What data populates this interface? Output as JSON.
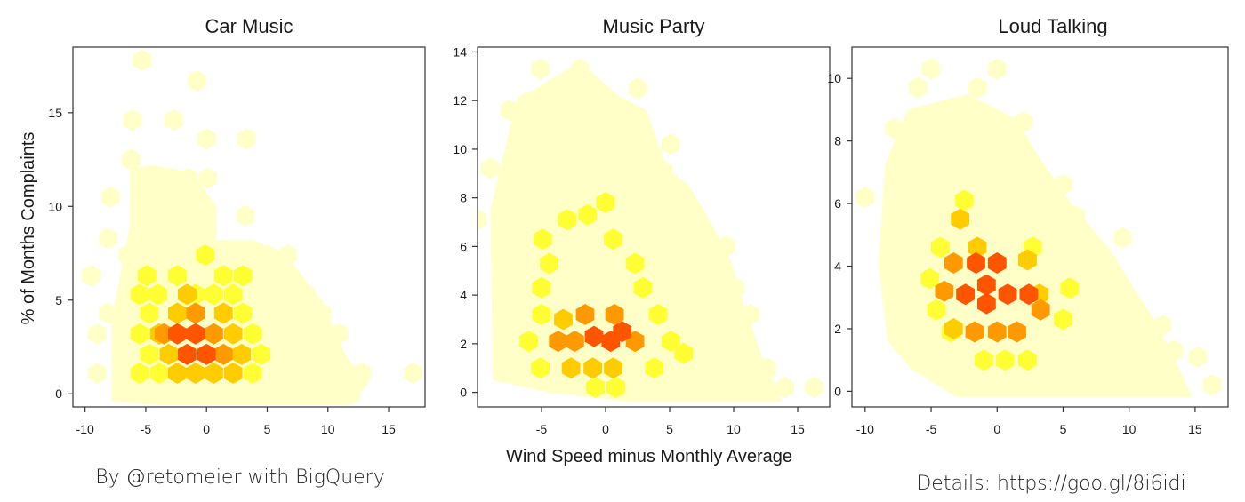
{
  "colors": {
    "lightest": "#ffffc8",
    "light": "#ffff99",
    "yellow": "#ffff33",
    "gold": "#ffcc00",
    "amber": "#ff9900",
    "orange": "#ff5500",
    "axis": "#333333"
  },
  "shared": {
    "ylabel": "% of Months Complaints",
    "xlabel": "Wind Speed minus Monthly Average"
  },
  "captions": {
    "left": "By @retomeier with BigQuery",
    "right": "Details: https://goo.gl/8i6idi"
  },
  "chart_data": [
    {
      "type": "heatmap",
      "subtype": "hexbin",
      "title": "Car Music",
      "xlim": [
        -11,
        18
      ],
      "ylim": [
        -0.7,
        18.5
      ],
      "xticks": [
        -10,
        -5,
        0,
        5,
        10,
        15
      ],
      "yticks": [
        0,
        5,
        10,
        15
      ],
      "levels": [
        "lightest",
        "light",
        "yellow",
        "gold",
        "amber",
        "orange"
      ],
      "hexes": [
        {
          "x": -5.3,
          "y": 17.8,
          "level": 0
        },
        {
          "x": -0.8,
          "y": 16.7,
          "level": 0
        },
        {
          "x": -6.1,
          "y": 14.6,
          "level": 0
        },
        {
          "x": -2.7,
          "y": 14.6,
          "level": 0
        },
        {
          "x": 0,
          "y": 13.6,
          "level": 0
        },
        {
          "x": 3.3,
          "y": 13.6,
          "level": 0
        },
        {
          "x": -6.2,
          "y": 12.5,
          "level": 0
        },
        {
          "x": -3.7,
          "y": 11.5,
          "level": 0
        },
        {
          "x": -1.5,
          "y": 11.5,
          "level": 0
        },
        {
          "x": 0.1,
          "y": 11.5,
          "level": 0
        },
        {
          "x": -7.9,
          "y": 10.5,
          "level": 0
        },
        {
          "x": -4.7,
          "y": 9.5,
          "level": 0
        },
        {
          "x": 3.2,
          "y": 9.5,
          "level": 0
        },
        {
          "x": -8.1,
          "y": 8.3,
          "level": 0
        },
        {
          "x": -6.5,
          "y": 7.4,
          "level": 0
        },
        {
          "x": 5.0,
          "y": 7.4,
          "level": 0
        },
        {
          "x": 6.7,
          "y": 7.4,
          "level": 0
        },
        {
          "x": -9.5,
          "y": 6.3,
          "level": 0
        },
        {
          "x": 8.2,
          "y": 5.3,
          "level": 0
        },
        {
          "x": -8.1,
          "y": 4.3,
          "level": 0
        },
        {
          "x": 9.5,
          "y": 4.3,
          "level": 0
        },
        {
          "x": -9.0,
          "y": 3.2,
          "level": 0
        },
        {
          "x": 10.9,
          "y": 3.2,
          "level": 0
        },
        {
          "x": -9.0,
          "y": 1.1,
          "level": 0
        },
        {
          "x": 10.5,
          "y": 1.1,
          "level": 0
        },
        {
          "x": 12.8,
          "y": 1.1,
          "level": 0
        },
        {
          "x": 17.0,
          "y": 1.1,
          "level": 0
        },
        {
          "x": 11.9,
          "y": 0.0,
          "level": 0
        },
        {
          "x": 8.0,
          "y": 0.0,
          "level": 0
        },
        {
          "x": -4.9,
          "y": 6.3,
          "level": 2
        },
        {
          "x": -2.4,
          "y": 6.3,
          "level": 2
        },
        {
          "x": -0.1,
          "y": 7.4,
          "level": 2
        },
        {
          "x": 1.4,
          "y": 6.3,
          "level": 2
        },
        {
          "x": 3.0,
          "y": 6.3,
          "level": 2
        },
        {
          "x": -5.5,
          "y": 5.3,
          "level": 2
        },
        {
          "x": -4.0,
          "y": 5.3,
          "level": 2
        },
        {
          "x": -0.9,
          "y": 5.3,
          "level": 2
        },
        {
          "x": 0.6,
          "y": 5.3,
          "level": 2
        },
        {
          "x": 2.2,
          "y": 5.3,
          "level": 2
        },
        {
          "x": -4.7,
          "y": 4.3,
          "level": 2
        },
        {
          "x": 3.0,
          "y": 4.3,
          "level": 2
        },
        {
          "x": -5.5,
          "y": 3.2,
          "level": 2
        },
        {
          "x": 3.8,
          "y": 3.2,
          "level": 2
        },
        {
          "x": -4.7,
          "y": 2.1,
          "level": 2
        },
        {
          "x": 4.5,
          "y": 2.1,
          "level": 2
        },
        {
          "x": -5.5,
          "y": 1.1,
          "level": 2
        },
        {
          "x": -3.9,
          "y": 1.1,
          "level": 2
        },
        {
          "x": 3.8,
          "y": 1.1,
          "level": 2
        },
        {
          "x": -2.4,
          "y": 4.3,
          "level": 3
        },
        {
          "x": 1.4,
          "y": 4.3,
          "level": 3
        },
        {
          "x": -3.9,
          "y": 3.2,
          "level": 3
        },
        {
          "x": -1.6,
          "y": 5.3,
          "level": 3
        },
        {
          "x": -3.1,
          "y": 2.1,
          "level": 3
        },
        {
          "x": 2.2,
          "y": 3.2,
          "level": 3
        },
        {
          "x": 2.9,
          "y": 2.1,
          "level": 3
        },
        {
          "x": -2.4,
          "y": 1.1,
          "level": 3
        },
        {
          "x": -0.9,
          "y": 1.1,
          "level": 3
        },
        {
          "x": 0.6,
          "y": 1.1,
          "level": 3
        },
        {
          "x": 2.2,
          "y": 1.1,
          "level": 3
        },
        {
          "x": -0.9,
          "y": 4.3,
          "level": 4
        },
        {
          "x": -3.5,
          "y": 3.2,
          "level": 4
        },
        {
          "x": 0.6,
          "y": 3.2,
          "level": 4
        },
        {
          "x": 1.4,
          "y": 2.1,
          "level": 4
        },
        {
          "x": -2.4,
          "y": 3.2,
          "level": 5
        },
        {
          "x": -0.9,
          "y": 3.2,
          "level": 5
        },
        {
          "x": -1.6,
          "y": 2.1,
          "level": 5
        },
        {
          "x": 0,
          "y": 2.1,
          "level": 5
        }
      ],
      "fill_polygon": [
        [
          -7.8,
          -0.4
        ],
        [
          -7.8,
          4.0
        ],
        [
          -6.3,
          9.0
        ],
        [
          -6.3,
          12.0
        ],
        [
          -4.5,
          12.2
        ],
        [
          -1.2,
          11.8
        ],
        [
          0.8,
          10.0
        ],
        [
          0.8,
          8.2
        ],
        [
          3.8,
          8.2
        ],
        [
          6.5,
          7.5
        ],
        [
          8.0,
          6.2
        ],
        [
          9.5,
          5.0
        ],
        [
          10.5,
          3.5
        ],
        [
          11.5,
          2.0
        ],
        [
          13.4,
          0.6
        ],
        [
          11.8,
          -0.6
        ],
        [
          7.0,
          -0.6
        ],
        [
          2.0,
          -0.6
        ],
        [
          -4.0,
          -0.6
        ]
      ]
    },
    {
      "type": "heatmap",
      "subtype": "hexbin",
      "title": "Music Party",
      "xlim": [
        -10,
        17.5
      ],
      "ylim": [
        -0.6,
        14.2
      ],
      "xticks": [
        -5,
        0,
        5,
        10,
        15
      ],
      "yticks": [
        0,
        2,
        4,
        6,
        8,
        10,
        12,
        14
      ],
      "levels": [
        "lightest",
        "light",
        "yellow",
        "gold",
        "amber",
        "orange"
      ],
      "hexes": [
        {
          "x": -5.1,
          "y": 13.3,
          "level": 0
        },
        {
          "x": -2.0,
          "y": 13.3,
          "level": 0
        },
        {
          "x": 2.5,
          "y": 12.5,
          "level": 0
        },
        {
          "x": -7.5,
          "y": 11.6,
          "level": 0
        },
        {
          "x": -6.2,
          "y": 11.9,
          "level": 0
        },
        {
          "x": -4.3,
          "y": 11.6,
          "level": 0
        },
        {
          "x": -1.0,
          "y": 11.6,
          "level": 0
        },
        {
          "x": 5.1,
          "y": 10.2,
          "level": 0
        },
        {
          "x": 4.5,
          "y": 9.1,
          "level": 0
        },
        {
          "x": -9.0,
          "y": 9.2,
          "level": 0
        },
        {
          "x": -7.0,
          "y": 8.5,
          "level": 0
        },
        {
          "x": -10.0,
          "y": 7.1,
          "level": 0
        },
        {
          "x": 6.6,
          "y": 7.1,
          "level": 0
        },
        {
          "x": 9.4,
          "y": 6.0,
          "level": 0
        },
        {
          "x": 8.1,
          "y": 5.4,
          "level": 0
        },
        {
          "x": 10.1,
          "y": 4.3,
          "level": 0
        },
        {
          "x": 11.3,
          "y": 3.2,
          "level": 0
        },
        {
          "x": 12.6,
          "y": 1.0,
          "level": 0
        },
        {
          "x": 14.0,
          "y": 0.2,
          "level": 0
        },
        {
          "x": 16.3,
          "y": 0.2,
          "level": 0
        },
        {
          "x": -1.4,
          "y": 7.3,
          "level": 2
        },
        {
          "x": -3.0,
          "y": 7.1,
          "level": 2
        },
        {
          "x": 0,
          "y": 7.8,
          "level": 2
        },
        {
          "x": -4.9,
          "y": 6.3,
          "level": 2
        },
        {
          "x": 0.6,
          "y": 6.3,
          "level": 2
        },
        {
          "x": -4.4,
          "y": 5.3,
          "level": 2
        },
        {
          "x": 2.3,
          "y": 5.3,
          "level": 2
        },
        {
          "x": -5.0,
          "y": 4.3,
          "level": 2
        },
        {
          "x": 2.9,
          "y": 4.3,
          "level": 2
        },
        {
          "x": -5.0,
          "y": 3.2,
          "level": 2
        },
        {
          "x": 4.1,
          "y": 3.2,
          "level": 2
        },
        {
          "x": -6.0,
          "y": 2.1,
          "level": 2
        },
        {
          "x": 5.1,
          "y": 2.1,
          "level": 2
        },
        {
          "x": 6.1,
          "y": 1.6,
          "level": 2
        },
        {
          "x": -5.1,
          "y": 1.0,
          "level": 2
        },
        {
          "x": 3.8,
          "y": 1.0,
          "level": 2
        },
        {
          "x": -0.8,
          "y": 0.2,
          "level": 2
        },
        {
          "x": 0.8,
          "y": 0.2,
          "level": 2
        },
        {
          "x": -3.3,
          "y": 3.0,
          "level": 3
        },
        {
          "x": -1.6,
          "y": 3.2,
          "level": 4
        },
        {
          "x": 0.7,
          "y": 3.2,
          "level": 4
        },
        {
          "x": -2.4,
          "y": 2.1,
          "level": 4
        },
        {
          "x": 2.3,
          "y": 2.1,
          "level": 4
        },
        {
          "x": -3.7,
          "y": 2.1,
          "level": 4
        },
        {
          "x": -2.7,
          "y": 1.0,
          "level": 3
        },
        {
          "x": -1.0,
          "y": 1.0,
          "level": 3
        },
        {
          "x": 0.6,
          "y": 1.0,
          "level": 3
        },
        {
          "x": -0.9,
          "y": 2.3,
          "level": 5
        },
        {
          "x": 0.4,
          "y": 2.1,
          "level": 5
        },
        {
          "x": 1.3,
          "y": 2.5,
          "level": 5
        }
      ],
      "fill_polygon": [
        [
          -8.8,
          0.5
        ],
        [
          -9.0,
          7.5
        ],
        [
          -7.6,
          10.6
        ],
        [
          -7.0,
          12.0
        ],
        [
          -2.0,
          13.6
        ],
        [
          1.0,
          12.2
        ],
        [
          3.2,
          11.6
        ],
        [
          4.8,
          9.2
        ],
        [
          6.5,
          8.5
        ],
        [
          8.2,
          7.0
        ],
        [
          9.8,
          5.4
        ],
        [
          10.8,
          3.6
        ],
        [
          12.2,
          1.5
        ],
        [
          13.8,
          -0.4
        ],
        [
          8.0,
          -0.4
        ],
        [
          2.0,
          -0.4
        ],
        [
          -4.5,
          0.0
        ]
      ]
    },
    {
      "type": "heatmap",
      "subtype": "hexbin",
      "title": "Loud Talking",
      "xlim": [
        -11,
        17.5
      ],
      "ylim": [
        -0.5,
        11
      ],
      "xticks": [
        -10,
        -5,
        0,
        5,
        10,
        15
      ],
      "yticks": [
        0,
        2,
        4,
        6,
        8,
        10
      ],
      "levels": [
        "lightest",
        "light",
        "yellow",
        "gold",
        "amber",
        "orange"
      ],
      "hexes": [
        {
          "x": -5.0,
          "y": 10.3,
          "level": 0
        },
        {
          "x": 0,
          "y": 10.3,
          "level": 0
        },
        {
          "x": -6.0,
          "y": 9.7,
          "level": 0
        },
        {
          "x": -1.5,
          "y": 9.7,
          "level": 0
        },
        {
          "x": -7.8,
          "y": 8.4,
          "level": 0
        },
        {
          "x": 2.0,
          "y": 8.6,
          "level": 0
        },
        {
          "x": 1.6,
          "y": 8.0,
          "level": 0
        },
        {
          "x": -10.0,
          "y": 6.2,
          "level": 0
        },
        {
          "x": 5.0,
          "y": 6.6,
          "level": 0
        },
        {
          "x": 6.0,
          "y": 5.6,
          "level": 0
        },
        {
          "x": 9.5,
          "y": 4.9,
          "level": 0
        },
        {
          "x": 12.5,
          "y": 2.1,
          "level": 0
        },
        {
          "x": 13.4,
          "y": 1.3,
          "level": 0
        },
        {
          "x": 15.2,
          "y": 1.1,
          "level": 0
        },
        {
          "x": 16.3,
          "y": 0.2,
          "level": 0
        },
        {
          "x": -2.5,
          "y": 6.1,
          "level": 2
        },
        {
          "x": -4.3,
          "y": 4.6,
          "level": 2
        },
        {
          "x": 2.7,
          "y": 4.6,
          "level": 2
        },
        {
          "x": -5.1,
          "y": 3.6,
          "level": 2
        },
        {
          "x": -4.6,
          "y": 2.6,
          "level": 2
        },
        {
          "x": 5.5,
          "y": 3.3,
          "level": 2
        },
        {
          "x": -3.5,
          "y": 1.9,
          "level": 2
        },
        {
          "x": 5.0,
          "y": 2.3,
          "level": 2
        },
        {
          "x": -1.0,
          "y": 1.0,
          "level": 2
        },
        {
          "x": 0.6,
          "y": 1.0,
          "level": 2
        },
        {
          "x": 2.3,
          "y": 1.0,
          "level": 2
        },
        {
          "x": -2.8,
          "y": 5.5,
          "level": 3
        },
        {
          "x": -1.5,
          "y": 4.6,
          "level": 3
        },
        {
          "x": -4.0,
          "y": 3.2,
          "level": 4
        },
        {
          "x": -3.3,
          "y": 4.1,
          "level": 4
        },
        {
          "x": 3.2,
          "y": 3.1,
          "level": 3
        },
        {
          "x": 2.3,
          "y": 4.2,
          "level": 3
        },
        {
          "x": -3.3,
          "y": 2.0,
          "level": 3
        },
        {
          "x": -1.7,
          "y": 1.9,
          "level": 4
        },
        {
          "x": 0,
          "y": 1.9,
          "level": 4
        },
        {
          "x": 1.5,
          "y": 1.9,
          "level": 4
        },
        {
          "x": 3.3,
          "y": 2.6,
          "level": 4
        },
        {
          "x": -1.6,
          "y": 4.1,
          "level": 5
        },
        {
          "x": 0,
          "y": 4.1,
          "level": 5
        },
        {
          "x": -2.4,
          "y": 3.1,
          "level": 5
        },
        {
          "x": 0.8,
          "y": 3.1,
          "level": 5
        },
        {
          "x": 2.4,
          "y": 3.1,
          "level": 5
        },
        {
          "x": -0.8,
          "y": 2.8,
          "level": 5
        },
        {
          "x": -0.8,
          "y": 3.4,
          "level": 5
        }
      ],
      "fill_polygon": [
        [
          -8.3,
          1.6
        ],
        [
          -9.0,
          4.0
        ],
        [
          -8.5,
          7.2
        ],
        [
          -6.8,
          9.0
        ],
        [
          -2.2,
          9.5
        ],
        [
          1.4,
          8.7
        ],
        [
          3.0,
          7.6
        ],
        [
          5.6,
          6.0
        ],
        [
          8.6,
          4.5
        ],
        [
          10.5,
          3.2
        ],
        [
          12.0,
          2.2
        ],
        [
          13.5,
          1.0
        ],
        [
          14.8,
          -0.2
        ],
        [
          9.0,
          -0.2
        ],
        [
          2.0,
          -0.2
        ],
        [
          -3.0,
          -0.2
        ],
        [
          -6.5,
          0.7
        ]
      ]
    }
  ]
}
